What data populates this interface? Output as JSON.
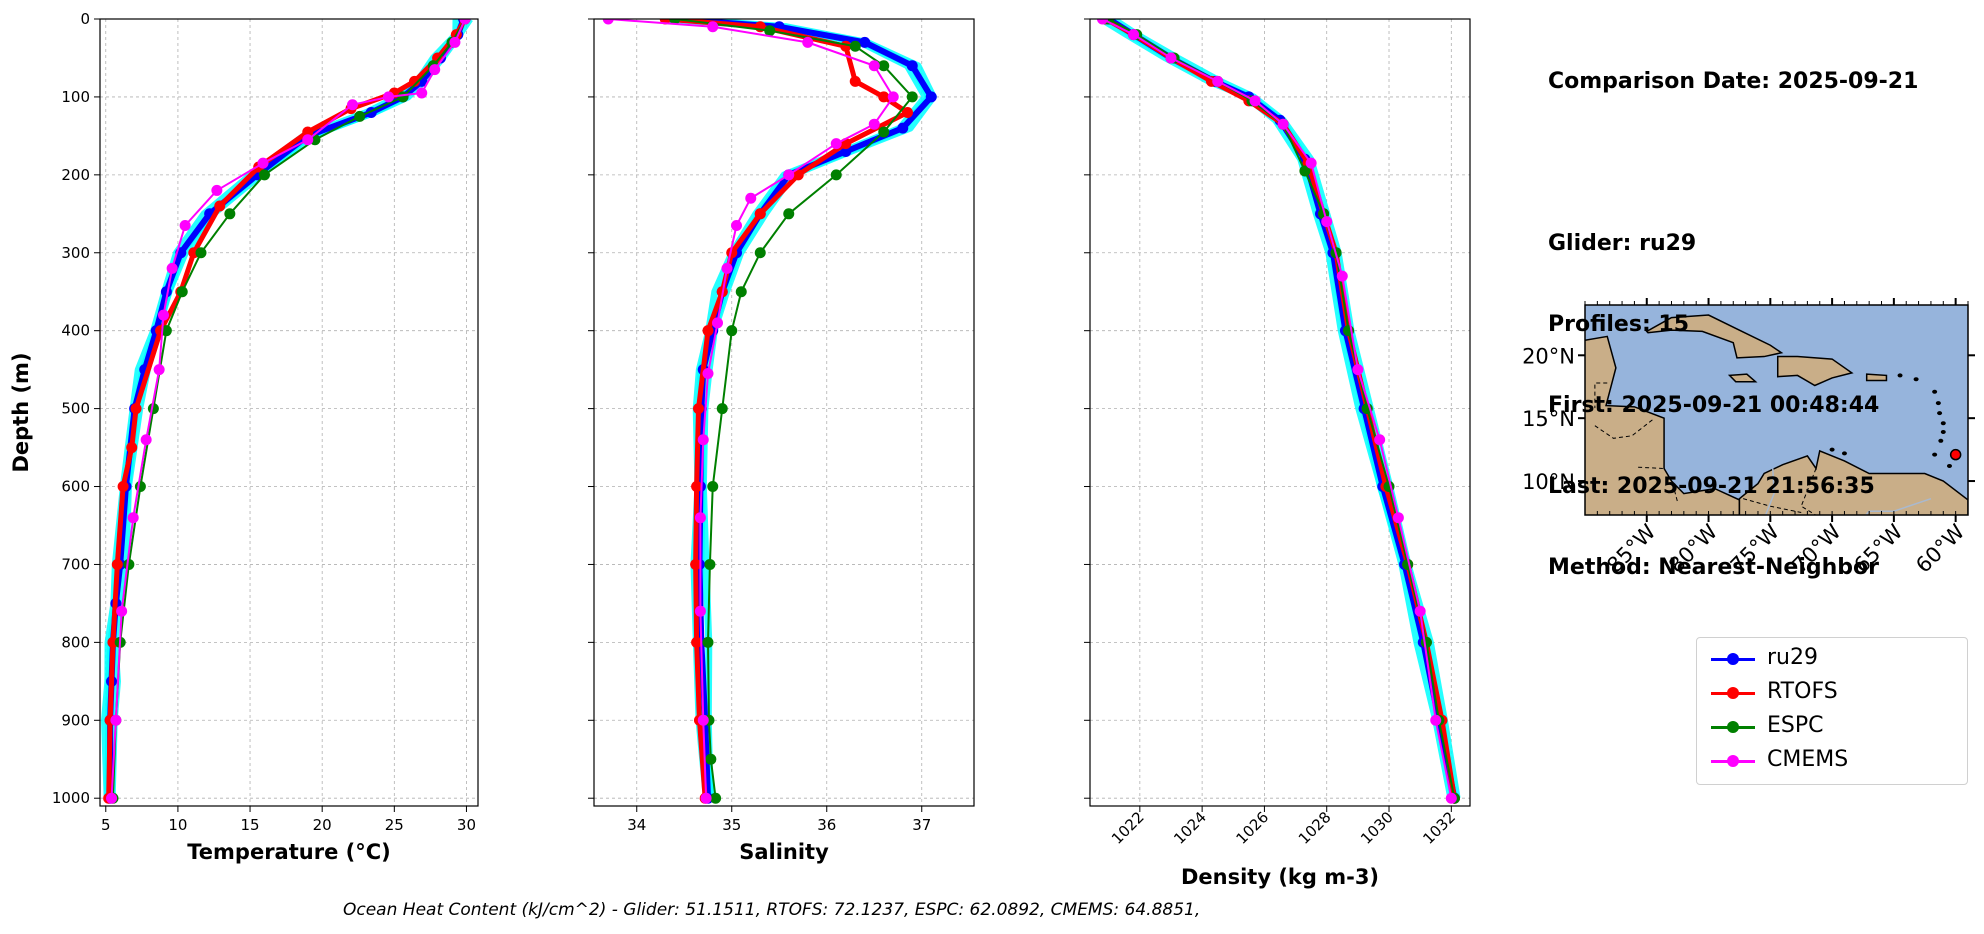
{
  "chart_data": [
    {
      "type": "line",
      "xlabel": "Temperature (°C)",
      "ylabel": "Depth (m)",
      "xlim": [
        4.6,
        30.8
      ],
      "ylim": [
        1010,
        0
      ],
      "xticks": [
        5,
        10,
        15,
        20,
        25,
        30
      ],
      "yticks": [
        0,
        100,
        200,
        300,
        400,
        500,
        600,
        700,
        800,
        900,
        1000
      ],
      "grid": true,
      "series": [
        {
          "name": "ru29",
          "color": "#0000ff",
          "x": [
            29.8,
            29.4,
            28.2,
            26.9,
            25.6,
            23.4,
            19.0,
            15.5,
            12.2,
            10.2,
            9.2,
            8.5,
            7.7,
            7.0,
            6.4,
            6.0,
            5.7,
            5.5,
            5.4,
            5.3,
            5.3
          ],
          "y": [
            0,
            20,
            50,
            80,
            100,
            120,
            150,
            200,
            250,
            300,
            350,
            400,
            450,
            500,
            600,
            700,
            750,
            800,
            850,
            900,
            1000
          ]
        },
        {
          "name": "RTOFS",
          "color": "#ff0000",
          "x": [
            29.9,
            29.3,
            28.0,
            26.4,
            25.0,
            22.0,
            19.0,
            15.6,
            12.9,
            11.1,
            10.2,
            8.8,
            7.1,
            6.8,
            6.2,
            5.8,
            5.5,
            5.3,
            5.2
          ],
          "y": [
            0,
            20,
            50,
            80,
            95,
            115,
            145,
            190,
            240,
            300,
            350,
            400,
            500,
            550,
            600,
            700,
            800,
            900,
            1000
          ]
        },
        {
          "name": "ESPC",
          "color": "#008000",
          "x": [
            29.9,
            29.0,
            27.7,
            25.6,
            22.6,
            19.5,
            16.0,
            13.6,
            11.6,
            10.3,
            9.2,
            8.3,
            7.4,
            6.6,
            6.0,
            5.7,
            5.5
          ],
          "y": [
            0,
            30,
            60,
            100,
            125,
            155,
            200,
            250,
            300,
            350,
            400,
            500,
            600,
            700,
            800,
            900,
            1000
          ]
        },
        {
          "name": "CMEMS",
          "color": "#ff00ff",
          "x": [
            29.9,
            29.2,
            27.8,
            26.9,
            24.6,
            22.1,
            19.0,
            15.9,
            12.7,
            10.5,
            9.6,
            9.0,
            8.7,
            7.8,
            6.9,
            6.1,
            5.7,
            5.4
          ],
          "y": [
            0,
            30,
            65,
            95,
            100,
            110,
            155,
            185,
            220,
            265,
            320,
            380,
            450,
            540,
            640,
            760,
            900,
            1000
          ]
        }
      ]
    },
    {
      "type": "line",
      "xlabel": "Salinity",
      "xlim": [
        33.55,
        37.55
      ],
      "ylim": [
        1010,
        0
      ],
      "xticks": [
        34,
        35,
        36,
        37
      ],
      "yticks": [
        0,
        100,
        200,
        300,
        400,
        500,
        600,
        700,
        800,
        900,
        1000
      ],
      "grid": true,
      "series": [
        {
          "name": "ru29",
          "color": "#0000ff",
          "x": [
            34.4,
            35.5,
            36.4,
            36.9,
            37.1,
            36.8,
            36.2,
            35.6,
            35.3,
            35.05,
            34.9,
            34.8,
            34.7,
            34.68,
            34.67,
            34.66,
            34.68,
            34.72,
            34.75
          ],
          "y": [
            0,
            10,
            30,
            60,
            100,
            140,
            170,
            200,
            250,
            300,
            350,
            400,
            450,
            500,
            600,
            700,
            800,
            900,
            1000
          ]
        },
        {
          "name": "RTOFS",
          "color": "#ff0000",
          "x": [
            34.3,
            35.3,
            36.2,
            36.3,
            36.6,
            36.85,
            36.2,
            35.7,
            35.3,
            35.0,
            34.9,
            34.75,
            34.65,
            34.63,
            34.62,
            34.63,
            34.66,
            34.72
          ],
          "y": [
            0,
            10,
            35,
            80,
            100,
            120,
            160,
            200,
            250,
            300,
            350,
            400,
            500,
            600,
            700,
            800,
            900,
            1000
          ]
        },
        {
          "name": "ESPC",
          "color": "#008000",
          "x": [
            34.4,
            35.4,
            36.3,
            36.6,
            36.9,
            36.6,
            36.1,
            35.6,
            35.3,
            35.1,
            35.0,
            34.9,
            34.8,
            34.77,
            34.75,
            34.76,
            34.78,
            34.83
          ],
          "y": [
            0,
            15,
            35,
            60,
            100,
            145,
            200,
            250,
            300,
            350,
            400,
            500,
            600,
            700,
            800,
            900,
            950,
            1000
          ]
        },
        {
          "name": "CMEMS",
          "color": "#ff00ff",
          "x": [
            33.7,
            34.8,
            35.8,
            36.5,
            36.7,
            36.5,
            36.1,
            35.6,
            35.2,
            35.05,
            34.95,
            34.85,
            34.75,
            34.7,
            34.67,
            34.67,
            34.7,
            34.73
          ],
          "y": [
            0,
            10,
            30,
            60,
            100,
            135,
            160,
            200,
            230,
            265,
            320,
            390,
            455,
            540,
            640,
            760,
            900,
            1000
          ]
        }
      ]
    },
    {
      "type": "line",
      "xlabel": "Density (kg m-3)",
      "xlim": [
        1020.4,
        1032.6
      ],
      "ylim": [
        1010,
        0
      ],
      "xticks": [
        1022,
        1024,
        1026,
        1028,
        1030,
        1032
      ],
      "yticks": [
        0,
        100,
        200,
        300,
        400,
        500,
        600,
        700,
        800,
        900,
        1000
      ],
      "grid": true,
      "series": [
        {
          "name": "ru29",
          "color": "#0000ff",
          "x": [
            1021.0,
            1021.8,
            1023.0,
            1024.4,
            1025.5,
            1026.5,
            1027.3,
            1027.8,
            1028.2,
            1028.6,
            1029.2,
            1029.8,
            1030.5,
            1031.1,
            1031.6,
            1032.1
          ],
          "y": [
            0,
            20,
            50,
            80,
            100,
            130,
            180,
            250,
            300,
            400,
            500,
            600,
            700,
            800,
            900,
            1000
          ]
        },
        {
          "name": "RTOFS",
          "color": "#ff0000",
          "x": [
            1020.9,
            1021.8,
            1023.0,
            1024.3,
            1025.5,
            1026.6,
            1027.4,
            1027.9,
            1028.3,
            1028.7,
            1029.3,
            1029.9,
            1030.6,
            1031.2,
            1031.7,
            1032.1
          ],
          "y": [
            0,
            20,
            50,
            80,
            105,
            135,
            185,
            250,
            300,
            400,
            500,
            600,
            700,
            800,
            900,
            1000
          ]
        },
        {
          "name": "ESPC",
          "color": "#008000",
          "x": [
            1021.0,
            1021.9,
            1023.1,
            1024.5,
            1025.6,
            1026.6,
            1027.3,
            1027.9,
            1028.3,
            1028.7,
            1029.3,
            1030.0,
            1030.6,
            1031.2,
            1031.6,
            1032.1
          ],
          "y": [
            0,
            20,
            50,
            80,
            105,
            135,
            195,
            250,
            300,
            400,
            500,
            600,
            700,
            800,
            900,
            1000
          ]
        },
        {
          "name": "CMEMS",
          "color": "#ff00ff",
          "x": [
            1020.8,
            1021.8,
            1023.0,
            1024.5,
            1025.7,
            1026.6,
            1027.5,
            1028.0,
            1028.5,
            1029.0,
            1029.7,
            1030.3,
            1031.0,
            1031.5,
            1032.0
          ],
          "y": [
            0,
            20,
            50,
            80,
            105,
            135,
            185,
            260,
            330,
            450,
            540,
            640,
            760,
            900,
            1000
          ]
        }
      ]
    },
    {
      "type": "map",
      "lon_ticks": [
        "85°W",
        "80°W",
        "75°W",
        "70°W",
        "65°W",
        "60°W"
      ],
      "lat_ticks": [
        "20°N",
        "15°N",
        "10°N"
      ],
      "colors": {
        "ocean": "#96b4dc",
        "land": "#c9ae88"
      },
      "glider_position": {
        "lon": -60.0,
        "lat": 12.1
      }
    }
  ],
  "info": {
    "comparison_date": "Comparison Date: 2025-09-21",
    "glider": "Glider: ru29",
    "profiles": "Profiles: 15",
    "first": "First: 2025-09-21 00:48:44",
    "last": "Last: 2025-09-21 21:56:35",
    "method": "Method: Nearest-Neighbor"
  },
  "legend": [
    {
      "label": "ru29",
      "color": "#0000ff"
    },
    {
      "label": "RTOFS",
      "color": "#ff0000"
    },
    {
      "label": "ESPC",
      "color": "#008000"
    },
    {
      "label": "CMEMS",
      "color": "#ff00ff"
    }
  ],
  "footer": {
    "text": "Ocean Heat Content (kJ/cm^2) - Glider: 51.1511,  RTOFS: 72.1237,  ESPC: 62.0892,  CMEMS: 64.8851,"
  },
  "glider_cloud_color": "#00ffff"
}
